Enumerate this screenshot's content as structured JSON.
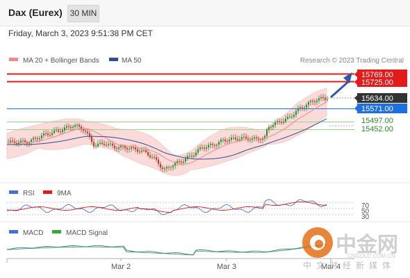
{
  "header": {
    "title": "Dax (Eurex)",
    "timeframe": "30 MIN"
  },
  "timestamp": "Friday, March 3, 2023 9:51:38 PM CET",
  "main_chart": {
    "legend": [
      {
        "label": "MA 20 + Bollinger Bands",
        "color": "#f08a8a"
      },
      {
        "label": "MA 50",
        "color": "#2b4f8f"
      }
    ],
    "credit": "Research © 2023 Trading Central",
    "levels": [
      {
        "label": "15769.00",
        "value": 15769,
        "style": "resistance",
        "color": "#e31b1b"
      },
      {
        "label": "15725.00",
        "value": 15725,
        "style": "resistance",
        "color": "#e31b1b"
      },
      {
        "label": "15634.00",
        "value": 15634,
        "style": "last",
        "color": "#333333"
      },
      {
        "label": "15571.00",
        "value": 15571,
        "style": "pivot",
        "color": "#1e6fe0"
      },
      {
        "label": "15497.00",
        "value": 15497,
        "style": "support",
        "color": "#2a8a2a"
      },
      {
        "label": "15452.00",
        "value": 15452,
        "style": "support",
        "color": "#2a8a2a"
      }
    ]
  },
  "rsi_panel": {
    "legend": [
      {
        "label": "RSI",
        "color": "#4a6fd1"
      },
      {
        "label": "9MA",
        "color": "#e31b1b"
      }
    ],
    "ticks": [
      "70",
      "50",
      "30"
    ]
  },
  "macd_panel": {
    "legend": [
      {
        "label": "MACD",
        "color": "#4a6fd1"
      },
      {
        "label": "MACD Signal",
        "color": "#3aa53a"
      }
    ]
  },
  "x_axis": {
    "labels": [
      "Mar 2",
      "Mar 3",
      "Mar 4"
    ]
  },
  "watermark": {
    "main": "中金网",
    "domain": "CNGOLD.COM.CN",
    "tagline": "中文财经新媒体"
  },
  "colors": {
    "bull": "#2e8b2e",
    "bear": "#c0392b",
    "band_fill": "#fbdada",
    "arrow": "#2b5aa8"
  }
}
